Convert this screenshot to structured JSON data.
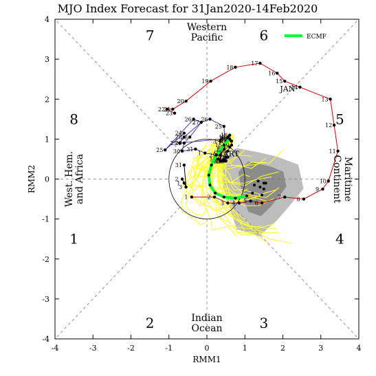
{
  "chart_data": {
    "type": "scatter",
    "title": "MJO Index Forecast for 31Jan2020-14Feb2020",
    "xlabel": "RMM1",
    "ylabel": "RMM2",
    "xlim": [
      -4,
      4
    ],
    "ylim": [
      -4,
      4
    ],
    "xticks": [
      "-4",
      "-3",
      "-2",
      "-1",
      "0",
      "1",
      "2",
      "3",
      "4"
    ],
    "yticks": [
      "-4",
      "-3",
      "-2",
      "-1",
      "0",
      "1",
      "2",
      "3",
      "4"
    ],
    "phases": [
      "1",
      "2",
      "3",
      "4",
      "5",
      "6",
      "7",
      "8"
    ],
    "regions": {
      "top": [
        "Western",
        "Pacific"
      ],
      "bottom": [
        "Indian",
        "Ocean"
      ],
      "left": [
        "West. Hem.",
        "and Africa"
      ],
      "right": [
        "Maritime",
        "Continent"
      ]
    },
    "legend": {
      "label": "ECMF",
      "color": "#00ff33",
      "position": "top-right"
    },
    "annotations": {
      "start": "START",
      "jan": "JAN"
    },
    "colors": {
      "dec": "#000000",
      "jan": "#cc0000",
      "late": "#5533aa",
      "ensemble": "#ffff33",
      "ensemble_mean": "#00ff33",
      "spread_outer": "#bdbdbd",
      "spread_inner": "#8c8c8c"
    },
    "series": [
      {
        "name": "",
        "points": [
          {
            "label": "1",
            "x": -0.6,
            "y": -0.1
          },
          {
            "label": "2",
            "x": -0.65,
            "y": 0.0
          },
          {
            "label": "3",
            "x": -0.55,
            "y": -0.2
          },
          {
            "label": "31",
            "x": -0.6,
            "y": 0.35
          }
        ]
      },
      {
        "name": "JAN",
        "points": [
          {
            "label": "1",
            "x": -0.4,
            "y": -0.45
          },
          {
            "label": "2",
            "x": 0.2,
            "y": -0.45
          },
          {
            "label": "3",
            "x": 0.55,
            "y": -0.6
          },
          {
            "label": "4",
            "x": 0.85,
            "y": -0.6
          },
          {
            "label": "5",
            "x": 1.15,
            "y": -0.55
          },
          {
            "label": "6",
            "x": 1.45,
            "y": -0.6
          },
          {
            "label": "7",
            "x": 2.05,
            "y": -0.45
          },
          {
            "label": "8",
            "x": 2.55,
            "y": -0.5
          },
          {
            "label": "9",
            "x": 3.05,
            "y": -0.25
          },
          {
            "label": "10",
            "x": 3.2,
            "y": -0.05
          },
          {
            "label": "11",
            "x": 3.45,
            "y": 0.7
          },
          {
            "label": "12",
            "x": 3.35,
            "y": 1.35
          },
          {
            "label": "13",
            "x": 3.25,
            "y": 2.0
          },
          {
            "label": "14",
            "x": 2.45,
            "y": 2.3
          },
          {
            "label": "15",
            "x": 2.05,
            "y": 2.45
          },
          {
            "label": "16",
            "x": 1.85,
            "y": 2.65
          },
          {
            "label": "17",
            "x": 1.4,
            "y": 2.9
          },
          {
            "label": "18",
            "x": 0.75,
            "y": 2.8
          },
          {
            "label": "19",
            "x": 0.1,
            "y": 2.45
          },
          {
            "label": "20",
            "x": -0.55,
            "y": 1.95
          },
          {
            "label": "21",
            "x": -0.9,
            "y": 1.75
          },
          {
            "label": "22",
            "x": -1.05,
            "y": 1.75
          },
          {
            "label": "23",
            "x": -0.85,
            "y": 1.65
          }
        ]
      },
      {
        "name": "",
        "points": [
          {
            "label": "24",
            "x": -0.6,
            "y": 1.15
          },
          {
            "label": "25",
            "x": -1.1,
            "y": 0.73
          },
          {
            "label": "26",
            "x": -0.35,
            "y": 1.5
          },
          {
            "label": "27",
            "x": -0.15,
            "y": 1.42
          },
          {
            "label": "28",
            "x": -0.45,
            "y": 1.05
          },
          {
            "label": "29",
            "x": -0.6,
            "y": 0.9
          },
          {
            "label": "30",
            "x": -0.65,
            "y": 0.7
          },
          {
            "label": "31",
            "x": -0.3,
            "y": 0.75
          },
          {
            "label": "1",
            "x": -0.05,
            "y": 0.65
          },
          {
            "label": "2",
            "x": 0.25,
            "y": 0.6
          },
          {
            "label": "3",
            "x": 0.35,
            "y": 0.95
          },
          {
            "label": "4",
            "x": 0.55,
            "y": 1.05
          },
          {
            "label": "5",
            "x": 0.6,
            "y": 1.0
          },
          {
            "label": "6",
            "x": 0.65,
            "y": 0.95
          },
          {
            "label": "7",
            "x": 0.5,
            "y": 0.95
          },
          {
            "label": "8",
            "x": 0.45,
            "y": 0.75
          },
          {
            "label": "9",
            "x": 0.35,
            "y": 0.6
          },
          {
            "label": "10",
            "x": 0.5,
            "y": 0.55
          },
          {
            "label": "11",
            "x": 0.45,
            "y": 0.5
          },
          {
            "label": "12",
            "x": 0.4,
            "y": 0.45
          },
          {
            "label": "13",
            "x": 0.3,
            "y": 0.5
          },
          {
            "label": "14",
            "x": 0.35,
            "y": 0.45
          },
          {
            "label": "15",
            "x": 0.45,
            "y": 0.85
          },
          {
            "label": "16",
            "x": 0.6,
            "y": 1.0
          },
          {
            "label": "17",
            "x": 0.55,
            "y": 1.05
          },
          {
            "label": "18",
            "x": 0.6,
            "y": 1.1
          },
          {
            "label": "19",
            "x": 0.65,
            "y": 0.85
          },
          {
            "label": "20",
            "x": 0.6,
            "y": 0.8
          },
          {
            "label": "21",
            "x": 0.55,
            "y": 0.7
          },
          {
            "label": "22",
            "x": 0.45,
            "y": 0.45
          },
          {
            "label": "23",
            "x": 0.55,
            "y": 0.55
          },
          {
            "label": "24",
            "x": 0.5,
            "y": 0.45
          },
          {
            "label": "25",
            "x": 0.45,
            "y": 1.32
          },
          {
            "label": "26",
            "x": 0.08,
            "y": 1.5
          },
          {
            "label": "27",
            "x": -0.15,
            "y": 1.42
          },
          {
            "label": "28",
            "x": -0.6,
            "y": 1.05
          },
          {
            "label": "29",
            "x": -0.72,
            "y": 0.9
          },
          {
            "label": "30",
            "x": 0.55,
            "y": 1.02
          },
          {
            "label": "31",
            "x": 0.58,
            "y": 0.97
          }
        ]
      },
      {
        "name": "ECMF",
        "points": [
          {
            "x": 0.6,
            "y": 1.0
          },
          {
            "x": 0.45,
            "y": 0.85
          },
          {
            "x": 0.25,
            "y": 0.6
          },
          {
            "x": 0.12,
            "y": 0.35
          },
          {
            "x": 0.05,
            "y": 0.1
          },
          {
            "x": 0.08,
            "y": -0.15
          },
          {
            "x": 0.22,
            "y": -0.35
          },
          {
            "x": 0.45,
            "y": -0.45
          },
          {
            "x": 0.75,
            "y": -0.48
          },
          {
            "x": 1.05,
            "y": -0.42
          }
        ]
      }
    ],
    "ensemble_dots": [
      {
        "x": 1.2,
        "y": -0.35
      },
      {
        "x": 1.25,
        "y": -0.15
      },
      {
        "x": 1.35,
        "y": -0.05
      },
      {
        "x": 1.4,
        "y": -0.2
      },
      {
        "x": 1.5,
        "y": -0.1
      },
      {
        "x": 1.5,
        "y": -0.25
      },
      {
        "x": 1.55,
        "y": -0.1
      },
      {
        "x": 1.15,
        "y": -0.55
      },
      {
        "x": 1.45,
        "y": -0.4
      }
    ]
  }
}
